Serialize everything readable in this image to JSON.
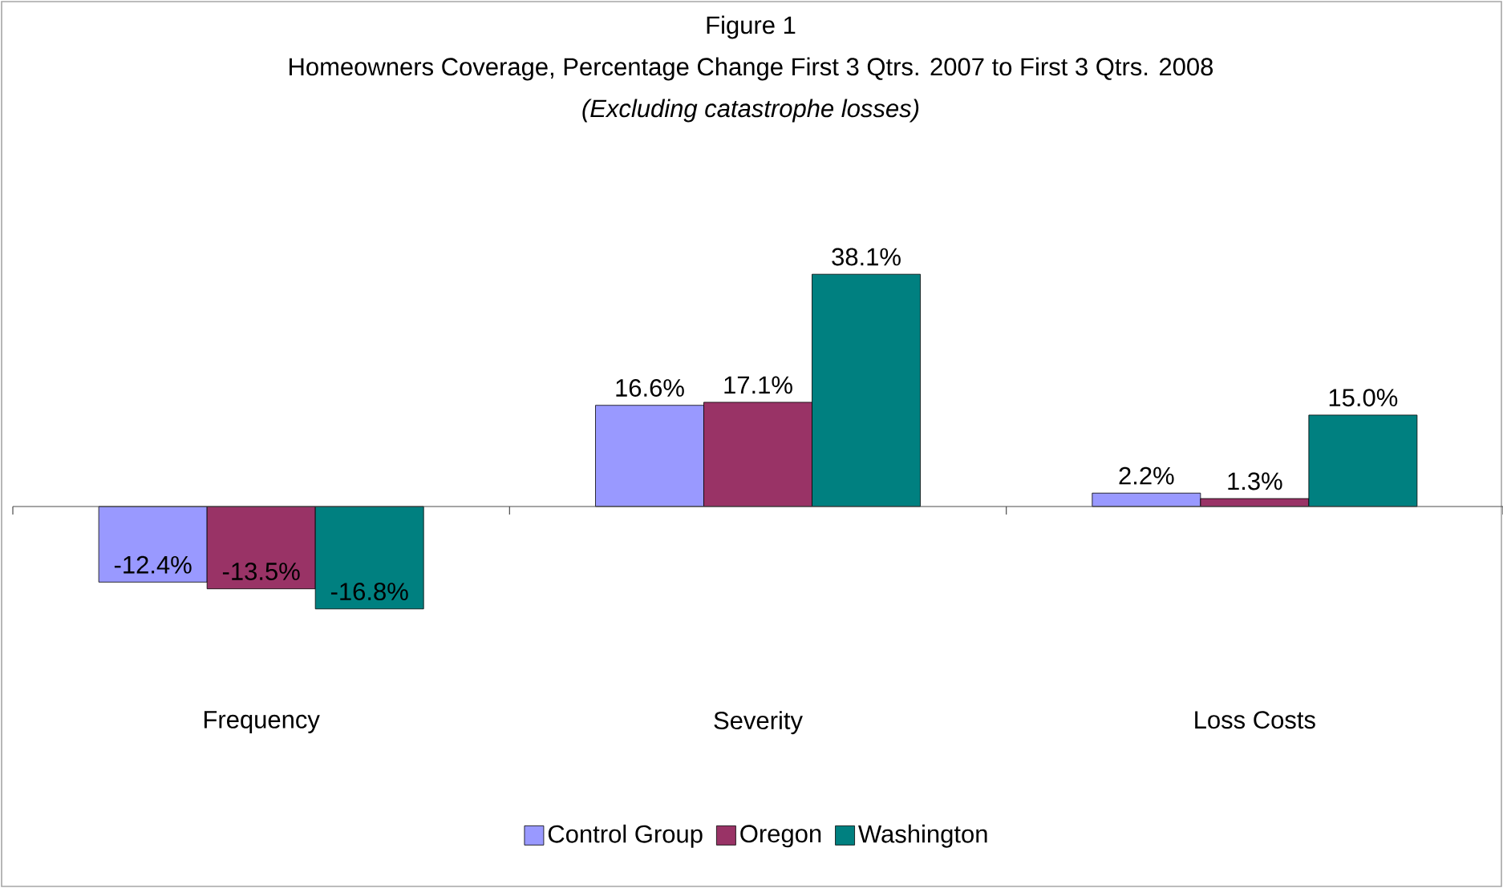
{
  "chart_data": {
    "type": "bar",
    "title": "Figure 1",
    "subtitle": "Homeowners Coverage, Percentage Change First 3 Qtrs. 2007 to First 3 Qtrs. 2008",
    "annotations": [
      "*(Excluding catastrophe losses)*"
    ],
    "categories": [
      "Frequency",
      "Severity",
      "Loss Costs"
    ],
    "series": [
      {
        "name": "Control Group",
        "color": "#9999ff",
        "values": [
          -12.4,
          16.6,
          2.2
        ],
        "value_labels": [
          "-12.4%",
          "16.6%",
          "2.2%"
        ]
      },
      {
        "name": "Oregon",
        "color": "#993366",
        "values": [
          -13.5,
          17.1,
          1.3
        ],
        "value_labels": [
          "-13.5%",
          "17.1%",
          "1.3%"
        ]
      },
      {
        "name": "Washington",
        "color": "#008080",
        "values": [
          -16.8,
          38.1,
          15.0
        ],
        "value_labels": [
          "-16.8%",
          "38.1%",
          "15.0%"
        ]
      }
    ],
    "legend": "bottom"
  }
}
